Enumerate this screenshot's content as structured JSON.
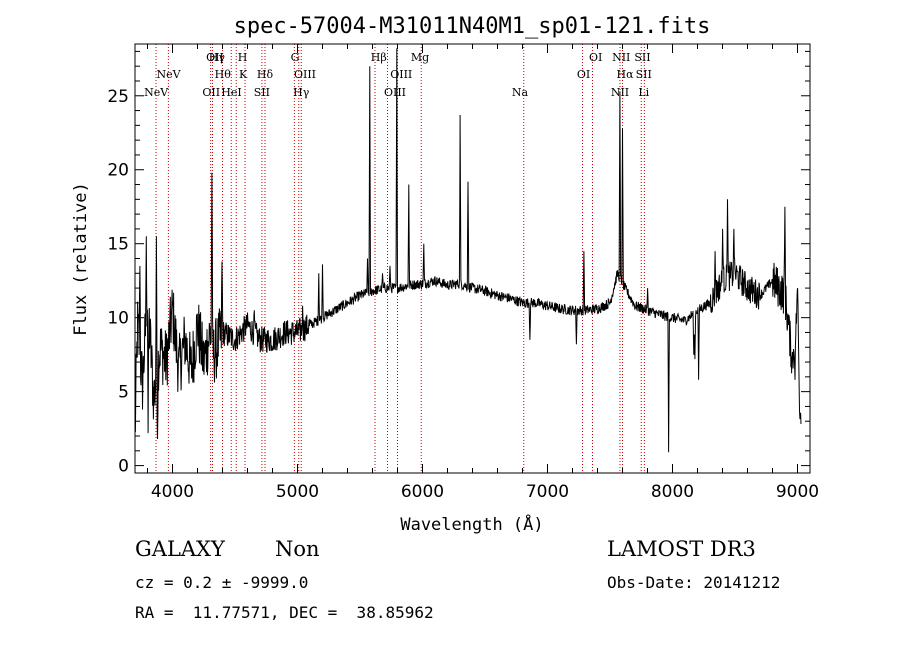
{
  "chart_data": {
    "type": "line",
    "title": "spec-57004-M31011N40M1_sp01-121.fits",
    "xlabel": "Wavelength (Å)",
    "ylabel": "Flux (relative)",
    "xlim": [
      3700,
      9100
    ],
    "ylim": [
      -0.5,
      28.5
    ],
    "xticks": [
      4000,
      5000,
      6000,
      7000,
      8000,
      9000
    ],
    "yticks": [
      0,
      5,
      10,
      15,
      20,
      25
    ],
    "grid": false,
    "line_color": "#000000",
    "marker_color": "#cc0000",
    "spectrum_anchors": [
      [
        3700,
        2.0
      ],
      [
        3720,
        9.5
      ],
      [
        3760,
        5.5
      ],
      [
        3800,
        11.5
      ],
      [
        3850,
        4.5
      ],
      [
        3900,
        8.0
      ],
      [
        3950,
        7.0
      ],
      [
        4000,
        10.5
      ],
      [
        4050,
        6.5
      ],
      [
        4100,
        8.5
      ],
      [
        4150,
        6.5
      ],
      [
        4200,
        9.5
      ],
      [
        4250,
        7.0
      ],
      [
        4300,
        9.0
      ],
      [
        4330,
        7.5
      ],
      [
        4400,
        9.0
      ],
      [
        4500,
        8.5
      ],
      [
        4600,
        9.5
      ],
      [
        4700,
        8.5
      ],
      [
        4800,
        8.5
      ],
      [
        4900,
        9.0
      ],
      [
        5000,
        9.0
      ],
      [
        5100,
        9.5
      ],
      [
        5200,
        10.0
      ],
      [
        5300,
        10.5
      ],
      [
        5400,
        11.0
      ],
      [
        5500,
        11.5
      ],
      [
        5600,
        11.8
      ],
      [
        5700,
        12.0
      ],
      [
        5800,
        12.0
      ],
      [
        5900,
        12.2
      ],
      [
        6000,
        12.3
      ],
      [
        6100,
        12.5
      ],
      [
        6200,
        12.2
      ],
      [
        6300,
        12.3
      ],
      [
        6400,
        12.0
      ],
      [
        6500,
        11.8
      ],
      [
        6600,
        11.5
      ],
      [
        6700,
        11.3
      ],
      [
        6800,
        11.0
      ],
      [
        6900,
        11.0
      ],
      [
        7000,
        10.8
      ],
      [
        7100,
        10.6
      ],
      [
        7200,
        10.5
      ],
      [
        7300,
        10.5
      ],
      [
        7400,
        10.6
      ],
      [
        7500,
        11.0
      ],
      [
        7560,
        13.0
      ],
      [
        7620,
        12.0
      ],
      [
        7700,
        10.8
      ],
      [
        7800,
        10.5
      ],
      [
        7900,
        10.2
      ],
      [
        8000,
        10.0
      ],
      [
        8100,
        9.8
      ],
      [
        8200,
        10.5
      ],
      [
        8300,
        11.0
      ],
      [
        8400,
        12.5
      ],
      [
        8500,
        13.0
      ],
      [
        8600,
        12.0
      ],
      [
        8700,
        11.5
      ],
      [
        8800,
        12.5
      ],
      [
        8900,
        11.5
      ],
      [
        8960,
        7.0
      ],
      [
        9000,
        11.0
      ],
      [
        9020,
        4.0
      ]
    ],
    "spectrum_features": [
      [
        3740,
        13.5
      ],
      [
        3790,
        15.5
      ],
      [
        3805,
        2.2
      ],
      [
        3870,
        15.5
      ],
      [
        3880,
        1.8
      ],
      [
        4315,
        19.8
      ],
      [
        4395,
        13.8
      ],
      [
        4655,
        10.5
      ],
      [
        5040,
        10.8
      ],
      [
        5170,
        13.0
      ],
      [
        5200,
        13.6
      ],
      [
        5560,
        14.0
      ],
      [
        5577,
        27.0
      ],
      [
        5680,
        13.0
      ],
      [
        5740,
        13.5
      ],
      [
        5795,
        28.2
      ],
      [
        5890,
        19.0
      ],
      [
        6010,
        15.0
      ],
      [
        6300,
        23.7
      ],
      [
        6365,
        19.2
      ],
      [
        6860,
        8.5
      ],
      [
        7230,
        8.2
      ],
      [
        7290,
        14.5
      ],
      [
        7580,
        25.3
      ],
      [
        7600,
        22.8
      ],
      [
        7800,
        12.0
      ],
      [
        7970,
        0.9
      ],
      [
        8170,
        7.5
      ],
      [
        8180,
        7.2
      ],
      [
        8210,
        5.8
      ],
      [
        8340,
        14.5
      ],
      [
        8400,
        16.0
      ],
      [
        8440,
        18.0
      ],
      [
        8490,
        16.0
      ],
      [
        8900,
        17.5
      ],
      [
        8980,
        5.8
      ],
      [
        9000,
        12.0
      ],
      [
        9020,
        3.2
      ]
    ],
    "lines": [
      {
        "name": "NeV",
        "wavelength": 3869,
        "row": 2
      },
      {
        "name": "NeV",
        "wavelength": 3968,
        "row": 1
      },
      {
        "name": "OII",
        "wavelength": 4340,
        "row": 0
      },
      {
        "name": "Hγ",
        "wavelength": 4355,
        "row": 0
      },
      {
        "name": "Hθ",
        "wavelength": 4402,
        "row": 1
      },
      {
        "name": "OII",
        "wavelength": 4310,
        "row": 3
      },
      {
        "name": "HeI",
        "wavelength": 4472,
        "row": 3
      },
      {
        "name": "H",
        "wavelength": 4560,
        "row": 0
      },
      {
        "name": "K",
        "wavelength": 4565,
        "row": 1
      },
      {
        "name": "Hδ",
        "wavelength": 4740,
        "row": 1
      },
      {
        "name": "SII",
        "wavelength": 4715,
        "row": 2
      },
      {
        "name": "G",
        "wavelength": 4980,
        "row": 0
      },
      {
        "name": "OIII",
        "wavelength": 5060,
        "row": 1
      },
      {
        "name": "Hγ",
        "wavelength": 5030,
        "row": 2
      },
      {
        "name": "Hβ",
        "wavelength": 5650,
        "row": 0
      },
      {
        "name": "OIII",
        "wavelength": 5830,
        "row": 1
      },
      {
        "name": "OIII",
        "wavelength": 5780,
        "row": 2
      },
      {
        "name": "Mg",
        "wavelength": 5980,
        "row": 0
      },
      {
        "name": "Na",
        "wavelength": 6780,
        "row": 2
      },
      {
        "name": "OI",
        "wavelength": 7385,
        "row": 0
      },
      {
        "name": "OI",
        "wavelength": 7288,
        "row": 1
      },
      {
        "name": "NII",
        "wavelength": 7590,
        "row": 0
      },
      {
        "name": "SII",
        "wavelength": 7760,
        "row": 0
      },
      {
        "name": "Hα",
        "wavelength": 7620,
        "row": 1
      },
      {
        "name": "SII",
        "wavelength": 7770,
        "row": 1
      },
      {
        "name": "NII",
        "wavelength": 7580,
        "row": 2
      },
      {
        "name": "Li",
        "wavelength": 7770,
        "row": 2
      }
    ],
    "line_markers": [
      3868,
      3967,
      4305,
      4320,
      4400,
      4470,
      4510,
      4580,
      4715,
      4740,
      4975,
      5010,
      5030,
      5620,
      5720,
      5800,
      5990,
      6810,
      7280,
      7360,
      7580,
      7600,
      7750,
      7775
    ]
  },
  "footer": {
    "object_class": "GALAXY",
    "subclass": "Non",
    "survey": "LAMOST DR3",
    "cz": "cz = 0.2 ± -9999.0",
    "obs_date": "Obs-Date: 20141212",
    "coords": "RA =  11.77571, DEC =  38.85962"
  }
}
